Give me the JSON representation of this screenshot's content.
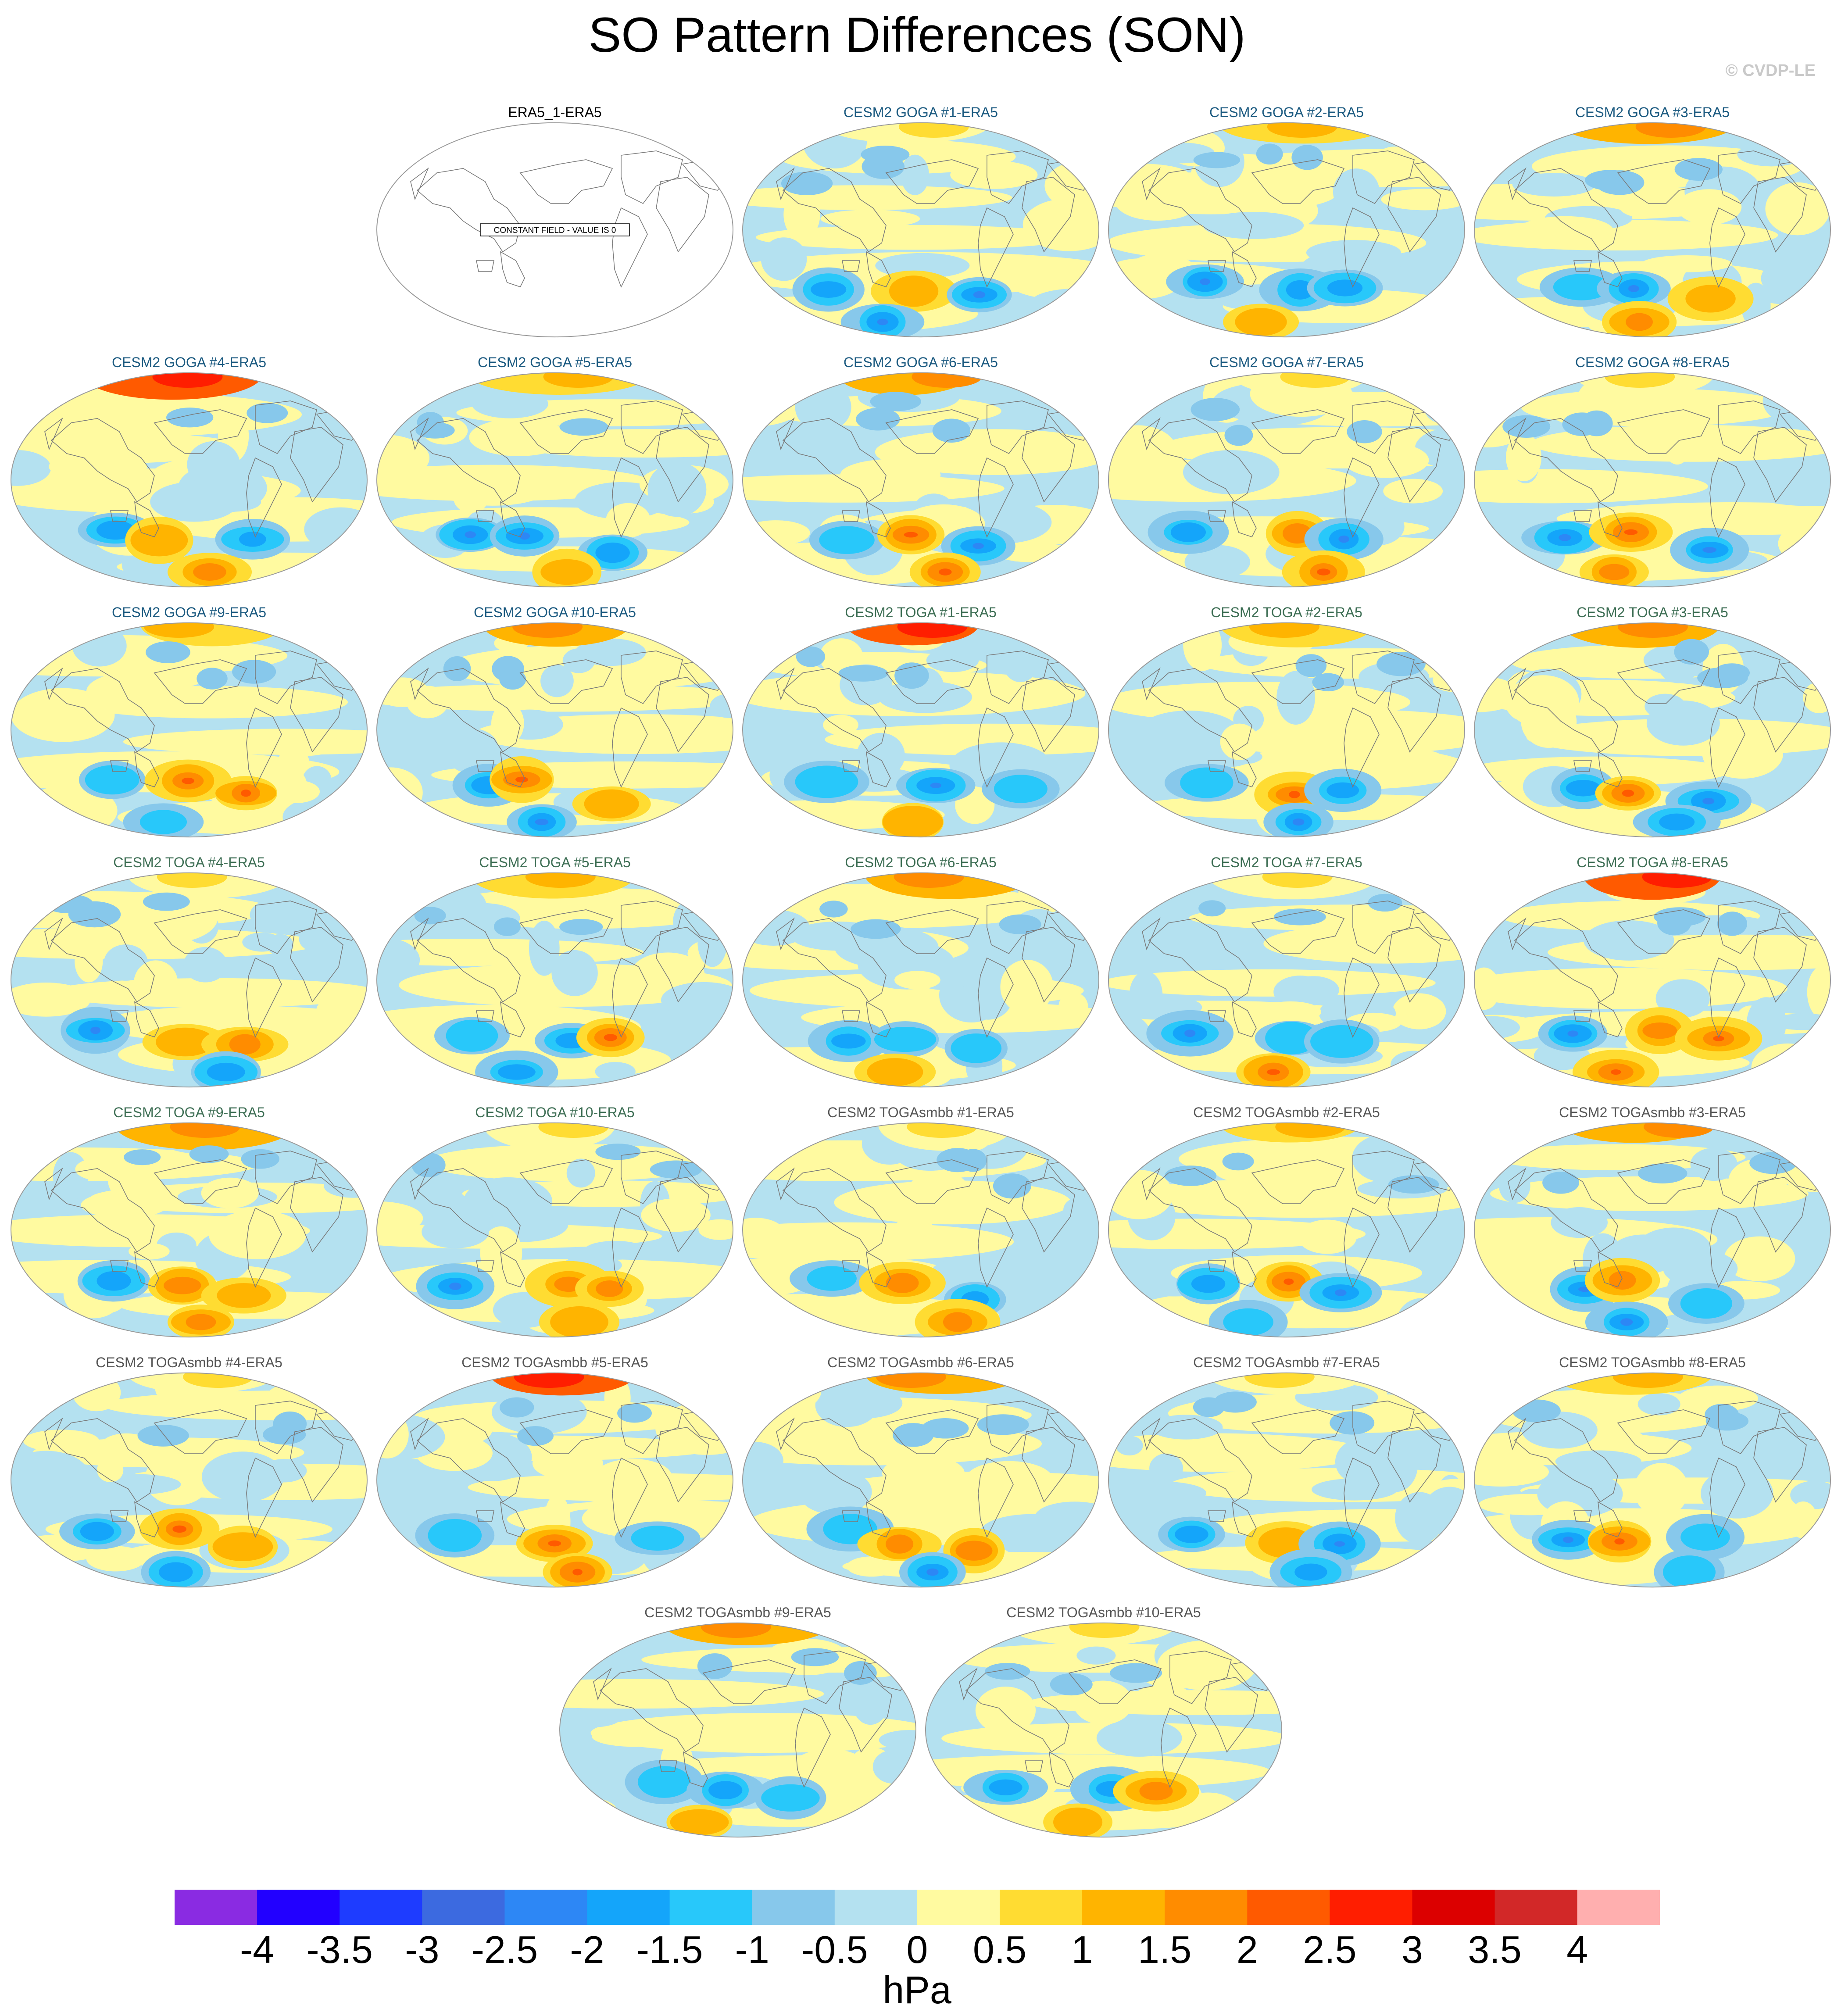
{
  "title": "SO Pattern Differences (SON)",
  "copyright": "© CVDP-LE",
  "constant_field_note": "CONSTANT FIELD - VALUE IS 0",
  "units": "hPa",
  "colorbar": {
    "colors": [
      "#8a2be2",
      "#2200ff",
      "#1e3cff",
      "#3c6ae0",
      "#2d87f5",
      "#14a5fa",
      "#28c8fa",
      "#87c8eb",
      "#b4e1f0",
      "#fffaa0",
      "#ffdc32",
      "#ffb400",
      "#ff8c00",
      "#ff5a00",
      "#ff1e00",
      "#dc0000",
      "#d22828",
      "#ffafaf"
    ],
    "labels": [
      "-4",
      "-3.5",
      "-3",
      "-2.5",
      "-2",
      "-1.5",
      "-1",
      "-0.5",
      "0",
      "0.5",
      "1",
      "1.5",
      "2",
      "2.5",
      "3",
      "3.5",
      "4"
    ]
  },
  "panels": [
    {
      "title": "ERA5_1-ERA5",
      "group": "obs"
    },
    {
      "title": "CESM2 GOGA #1-ERA5",
      "group": "goga"
    },
    {
      "title": "CESM2 GOGA #2-ERA5",
      "group": "goga"
    },
    {
      "title": "CESM2 GOGA #3-ERA5",
      "group": "goga"
    },
    {
      "title": "CESM2 GOGA #4-ERA5",
      "group": "goga"
    },
    {
      "title": "CESM2 GOGA #5-ERA5",
      "group": "goga"
    },
    {
      "title": "CESM2 GOGA #6-ERA5",
      "group": "goga"
    },
    {
      "title": "CESM2 GOGA #7-ERA5",
      "group": "goga"
    },
    {
      "title": "CESM2 GOGA #8-ERA5",
      "group": "goga"
    },
    {
      "title": "CESM2 GOGA #9-ERA5",
      "group": "goga"
    },
    {
      "title": "CESM2 GOGA #10-ERA5",
      "group": "goga"
    },
    {
      "title": "CESM2 TOGA #1-ERA5",
      "group": "toga"
    },
    {
      "title": "CESM2 TOGA #2-ERA5",
      "group": "toga"
    },
    {
      "title": "CESM2 TOGA #3-ERA5",
      "group": "toga"
    },
    {
      "title": "CESM2 TOGA #4-ERA5",
      "group": "toga"
    },
    {
      "title": "CESM2 TOGA #5-ERA5",
      "group": "toga"
    },
    {
      "title": "CESM2 TOGA #6-ERA5",
      "group": "toga"
    },
    {
      "title": "CESM2 TOGA #7-ERA5",
      "group": "toga"
    },
    {
      "title": "CESM2 TOGA #8-ERA5",
      "group": "toga"
    },
    {
      "title": "CESM2 TOGA #9-ERA5",
      "group": "toga"
    },
    {
      "title": "CESM2 TOGA #10-ERA5",
      "group": "toga"
    },
    {
      "title": "CESM2 TOGAsmbb #1-ERA5",
      "group": "smbb"
    },
    {
      "title": "CESM2 TOGAsmbb #2-ERA5",
      "group": "smbb"
    },
    {
      "title": "CESM2 TOGAsmbb #3-ERA5",
      "group": "smbb"
    },
    {
      "title": "CESM2 TOGAsmbb #4-ERA5",
      "group": "smbb"
    },
    {
      "title": "CESM2 TOGAsmbb #5-ERA5",
      "group": "smbb"
    },
    {
      "title": "CESM2 TOGAsmbb #6-ERA5",
      "group": "smbb"
    },
    {
      "title": "CESM2 TOGAsmbb #7-ERA5",
      "group": "smbb"
    },
    {
      "title": "CESM2 TOGAsmbb #8-ERA5",
      "group": "smbb"
    },
    {
      "title": "CESM2 TOGAsmbb #9-ERA5",
      "group": "smbb"
    },
    {
      "title": "CESM2 TOGAsmbb #10-ERA5",
      "group": "smbb"
    }
  ]
}
